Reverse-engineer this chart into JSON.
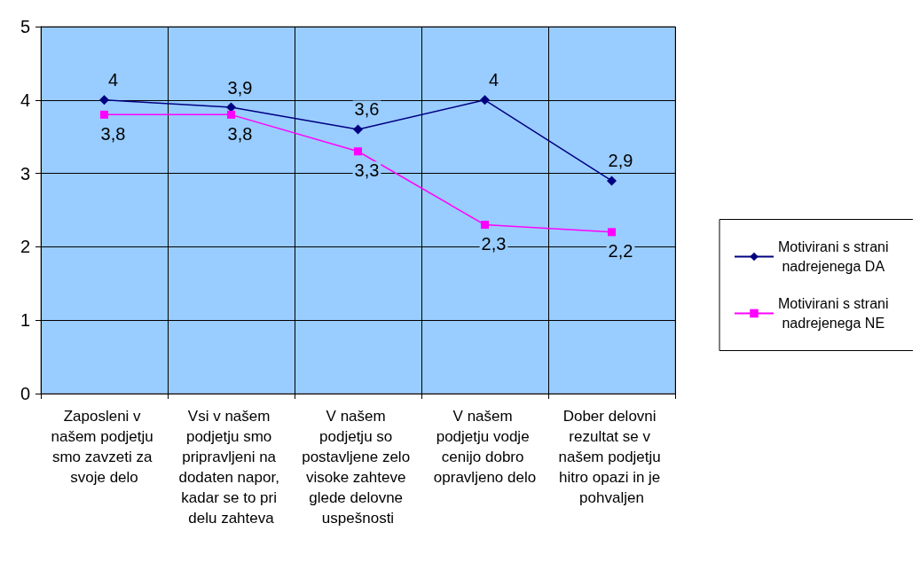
{
  "chart_data": {
    "type": "line",
    "categories": [
      "Zaposleni v našem podjetju smo zavzeti za svoje delo",
      "Vsi v našem podjetju smo pripravljeni na dodaten napor, kadar se to pri delu zahteva",
      "V našem podjetju so postavljene zelo visoke zahteve glede delovne uspešnosti",
      "V našem podjetju vodje cenijo dobro opravljeno delo",
      "Dober delovni rezultat se v našem podjetju hitro opazi in je pohvaljen"
    ],
    "series": [
      {
        "name": "Motivirani s strani nadrejenega DA",
        "color": "#000080",
        "marker": "diamond",
        "values": [
          4,
          3.9,
          3.6,
          4,
          2.9
        ],
        "value_labels": [
          "4",
          "3,9",
          "3,6",
          "4",
          "2,9"
        ]
      },
      {
        "name": "Motivirani s strani nadrejenega NE",
        "color": "#ff00ff",
        "marker": "square",
        "values": [
          3.8,
          3.8,
          3.3,
          2.3,
          2.2
        ],
        "value_labels": [
          "3,8",
          "3,8",
          "3,3",
          "2,3",
          "2,2"
        ]
      }
    ],
    "ylim": [
      0,
      5
    ],
    "yticks": [
      0,
      1,
      2,
      3,
      4,
      5
    ],
    "grid": true,
    "legend": "right"
  }
}
